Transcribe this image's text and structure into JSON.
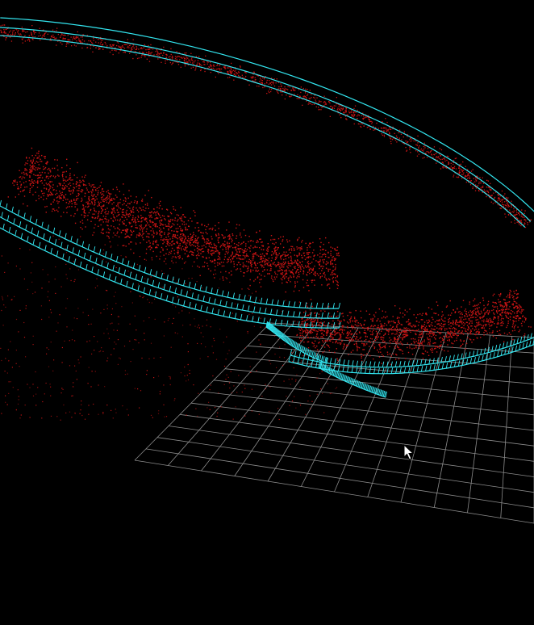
{
  "viewer": {
    "background_color": "#000000",
    "grid_color": "#8c8c8c",
    "map_point_color": "#c81414",
    "trajectory_color": "#33e6f0"
  },
  "cursor": {
    "icon": "mouse-pointer-icon"
  }
}
